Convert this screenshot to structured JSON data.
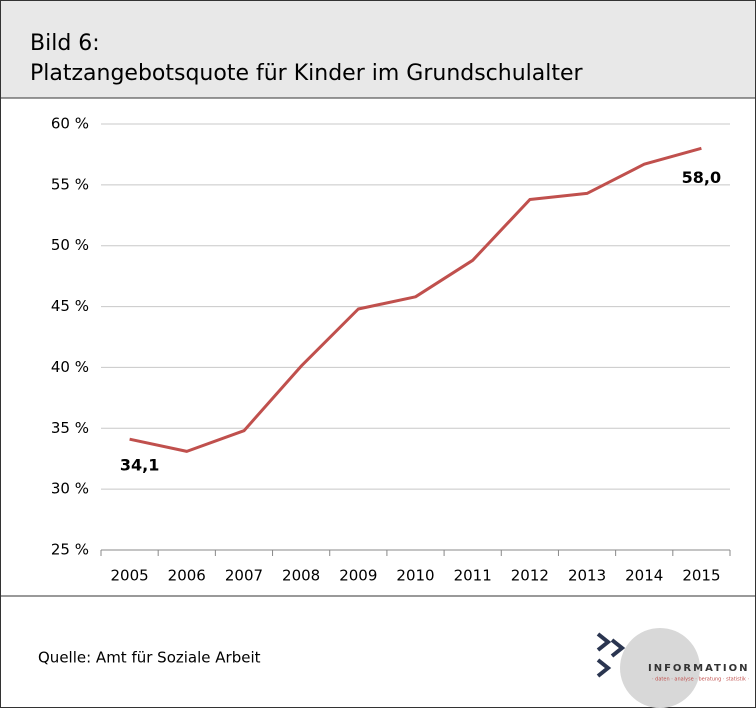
{
  "header": {
    "figure": "Bild 6:",
    "title": "Platzangebotsquote für Kinder im Grundschulalter"
  },
  "chart_data": {
    "type": "line",
    "categories": [
      "2005",
      "2006",
      "2007",
      "2008",
      "2009",
      "2010",
      "2011",
      "2012",
      "2013",
      "2014",
      "2015"
    ],
    "series": [
      {
        "name": "Platzangebotsquote",
        "color": "#c0504d",
        "values": [
          34.1,
          33.1,
          34.8,
          40.1,
          44.8,
          45.8,
          48.8,
          53.8,
          54.3,
          56.7,
          58.0
        ],
        "value_labels": [
          "34,1",
          null,
          null,
          null,
          null,
          null,
          null,
          null,
          null,
          null,
          "58,0"
        ]
      }
    ],
    "ylim": [
      25,
      60
    ],
    "yticks": [
      {
        "value": 25,
        "label": "25 %"
      },
      {
        "value": 30,
        "label": "30 %"
      },
      {
        "value": 35,
        "label": "35 %"
      },
      {
        "value": 40,
        "label": "40 %"
      },
      {
        "value": 45,
        "label": "45 %"
      },
      {
        "value": 50,
        "label": "50 %"
      },
      {
        "value": 55,
        "label": "55 %"
      },
      {
        "value": 60,
        "label": "60 %"
      }
    ],
    "grid": true
  },
  "footer": {
    "source": "Quelle: Amt für Soziale Arbeit",
    "logo": "INFORMATION",
    "logo_tagline": "· daten · analyse · beratung · statistik ·"
  }
}
